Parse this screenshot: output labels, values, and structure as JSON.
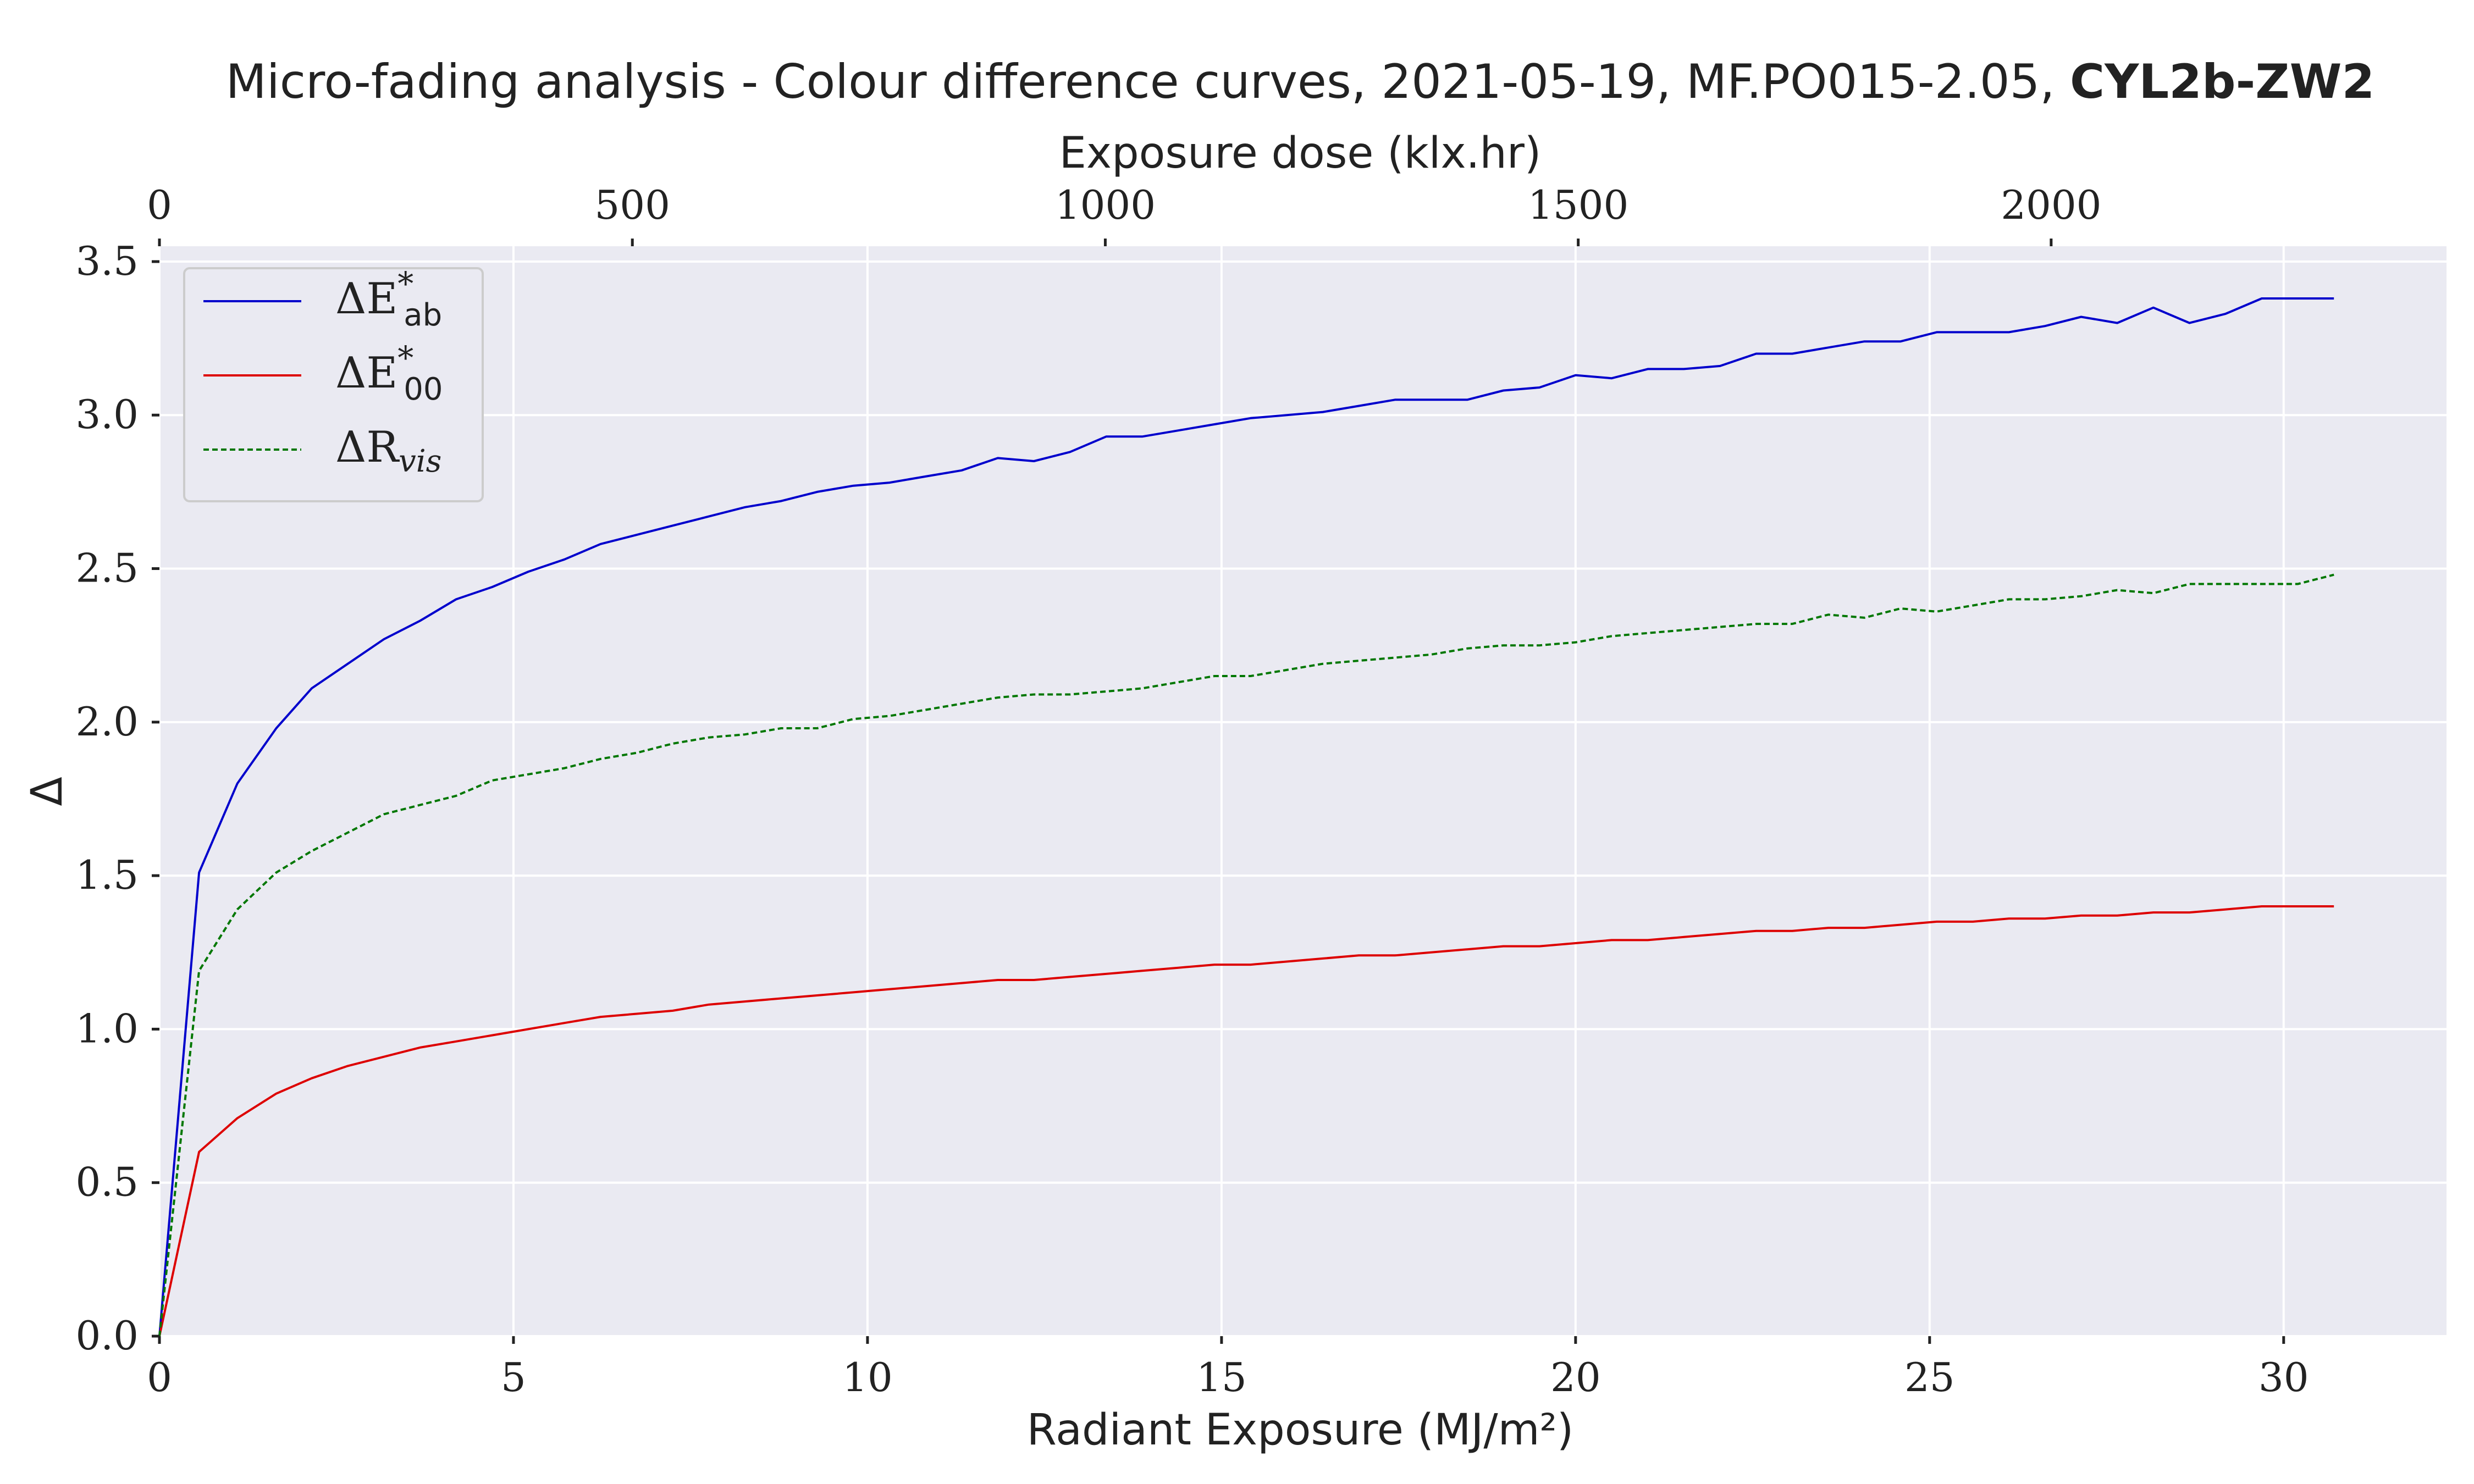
{
  "chart_data": {
    "type": "line",
    "title": "Micro-fading analysis - Colour difference curves, 2021-05-19, MF.PO015-2.05,",
    "title_bold": "CYL2b-ZW2",
    "xlabel": "Radiant Exposure (MJ/m²)",
    "ylabel": "Δ",
    "x2label": "Exposure dose (klx.hr)",
    "xlim": [
      0,
      32.3
    ],
    "ylim": [
      0,
      3.55
    ],
    "x2lim": [
      0,
      2418
    ],
    "xticks": [
      0,
      5,
      10,
      15,
      20,
      25,
      30
    ],
    "yticks": [
      0.0,
      0.5,
      1.0,
      1.5,
      2.0,
      2.5,
      3.0,
      3.5
    ],
    "yticklabels": [
      "0.0",
      "0.5",
      "1.0",
      "1.5",
      "2.0",
      "2.5",
      "3.0",
      "3.5"
    ],
    "x2ticks": [
      0,
      500,
      1000,
      1500,
      2000
    ],
    "grid": true,
    "legend_position": "top-left",
    "background": "#eaeaf2",
    "x": [
      0,
      0.56,
      1.1,
      1.65,
      2.15,
      2.66,
      3.17,
      3.68,
      4.19,
      4.7,
      5.21,
      5.72,
      6.23,
      6.74,
      7.25,
      7.76,
      8.27,
      8.78,
      9.29,
      9.8,
      10.31,
      10.82,
      11.33,
      11.84,
      12.35,
      12.86,
      13.37,
      13.88,
      14.39,
      14.9,
      15.41,
      15.92,
      16.43,
      16.94,
      17.45,
      17.96,
      18.47,
      18.98,
      19.49,
      20.0,
      20.51,
      21.02,
      21.53,
      22.04,
      22.55,
      23.06,
      23.57,
      24.08,
      24.59,
      25.1,
      25.61,
      26.12,
      26.63,
      27.14,
      27.65,
      28.16,
      28.67,
      29.18,
      29.69,
      30.2,
      30.71
    ],
    "series": [
      {
        "name": "ΔE*ab",
        "color": "#0000cc",
        "dash": "solid",
        "values": [
          0.0,
          1.51,
          1.8,
          1.98,
          2.11,
          2.19,
          2.27,
          2.33,
          2.4,
          2.44,
          2.49,
          2.53,
          2.58,
          2.61,
          2.64,
          2.67,
          2.7,
          2.72,
          2.75,
          2.77,
          2.78,
          2.8,
          2.82,
          2.86,
          2.85,
          2.88,
          2.93,
          2.93,
          2.95,
          2.97,
          2.99,
          3.0,
          3.01,
          3.03,
          3.05,
          3.05,
          3.05,
          3.08,
          3.09,
          3.13,
          3.12,
          3.15,
          3.15,
          3.16,
          3.2,
          3.2,
          3.22,
          3.24,
          3.24,
          3.27,
          3.27,
          3.27,
          3.29,
          3.32,
          3.3,
          3.35,
          3.3,
          3.33,
          3.38,
          3.38,
          3.38
        ]
      },
      {
        "name": "ΔE*00",
        "color": "#dd0000",
        "dash": "solid",
        "values": [
          0.0,
          0.6,
          0.71,
          0.79,
          0.84,
          0.88,
          0.91,
          0.94,
          0.96,
          0.98,
          1.0,
          1.02,
          1.04,
          1.05,
          1.06,
          1.08,
          1.09,
          1.1,
          1.11,
          1.12,
          1.13,
          1.14,
          1.15,
          1.16,
          1.16,
          1.17,
          1.18,
          1.19,
          1.2,
          1.21,
          1.21,
          1.22,
          1.23,
          1.24,
          1.24,
          1.25,
          1.26,
          1.27,
          1.27,
          1.28,
          1.29,
          1.29,
          1.3,
          1.31,
          1.32,
          1.32,
          1.33,
          1.33,
          1.34,
          1.35,
          1.35,
          1.36,
          1.36,
          1.37,
          1.37,
          1.38,
          1.38,
          1.39,
          1.4,
          1.4,
          1.4
        ]
      },
      {
        "name": "ΔRvis",
        "color": "#007700",
        "dash": "dashed",
        "values": [
          0.0,
          1.19,
          1.39,
          1.51,
          1.58,
          1.64,
          1.7,
          1.73,
          1.76,
          1.81,
          1.83,
          1.85,
          1.88,
          1.9,
          1.93,
          1.95,
          1.96,
          1.98,
          1.98,
          2.01,
          2.02,
          2.04,
          2.06,
          2.08,
          2.09,
          2.09,
          2.1,
          2.11,
          2.13,
          2.15,
          2.15,
          2.17,
          2.19,
          2.2,
          2.21,
          2.22,
          2.24,
          2.25,
          2.25,
          2.26,
          2.28,
          2.29,
          2.3,
          2.31,
          2.32,
          2.32,
          2.35,
          2.34,
          2.37,
          2.36,
          2.38,
          2.4,
          2.4,
          2.41,
          2.43,
          2.42,
          2.45,
          2.45,
          2.45,
          2.45,
          2.48
        ]
      }
    ]
  },
  "legend": {
    "entries": [
      {
        "main": "ΔE",
        "sup": "*",
        "sub": "ab"
      },
      {
        "main": "ΔE",
        "sup": "*",
        "sub": "00"
      },
      {
        "main": "ΔR",
        "sup": "",
        "sub": "vis"
      }
    ]
  }
}
